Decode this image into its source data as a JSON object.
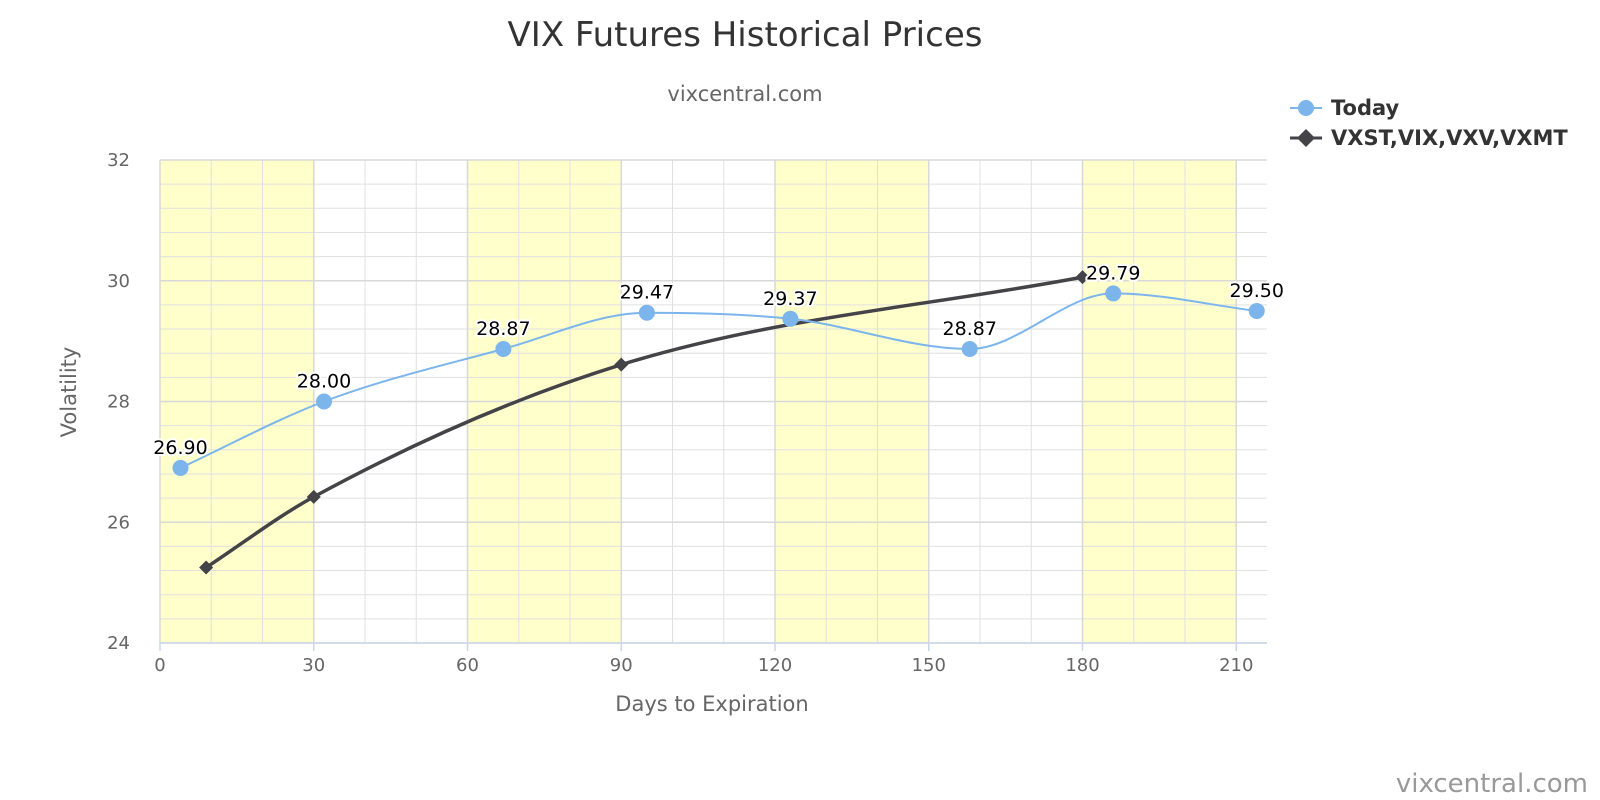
{
  "chart_data": {
    "type": "line",
    "title": "VIX Futures Historical Prices",
    "subtitle": "vixcentral.com",
    "xlabel": "Days to Expiration",
    "ylabel": "Volatility",
    "xlim": [
      0,
      216
    ],
    "ylim": [
      24,
      32
    ],
    "x_ticks": [
      0,
      30,
      60,
      90,
      120,
      150,
      180,
      210
    ],
    "y_ticks": [
      24,
      26,
      28,
      30,
      32
    ],
    "x_minor_step": 10,
    "y_minor_step": 0.4,
    "plot_bands_x": [
      [
        0,
        30
      ],
      [
        60,
        90
      ],
      [
        120,
        150
      ],
      [
        180,
        210
      ]
    ],
    "grid": true,
    "legend_position": "top-right",
    "credit": "vixcentral.com",
    "colors": {
      "today": "#7cb5ec",
      "index": "#434348",
      "band": "#ffffcc",
      "grid": "#e6e6e6",
      "axis": "#ccd6eb"
    },
    "series": [
      {
        "name": "Today",
        "marker": "circle",
        "x": [
          4,
          32,
          67,
          95,
          123,
          158,
          186,
          214
        ],
        "y": [
          26.9,
          28.0,
          28.87,
          29.47,
          29.37,
          28.87,
          29.79,
          29.5
        ],
        "labels": [
          "26.90",
          "28.00",
          "28.87",
          "29.47",
          "29.37",
          "28.87",
          "29.79",
          "29.50"
        ]
      },
      {
        "name": "VXST,VIX,VXV,VXMT",
        "marker": "diamond",
        "x": [
          9,
          30,
          90,
          180
        ],
        "y": [
          25.25,
          26.42,
          28.61,
          30.06
        ]
      }
    ]
  }
}
